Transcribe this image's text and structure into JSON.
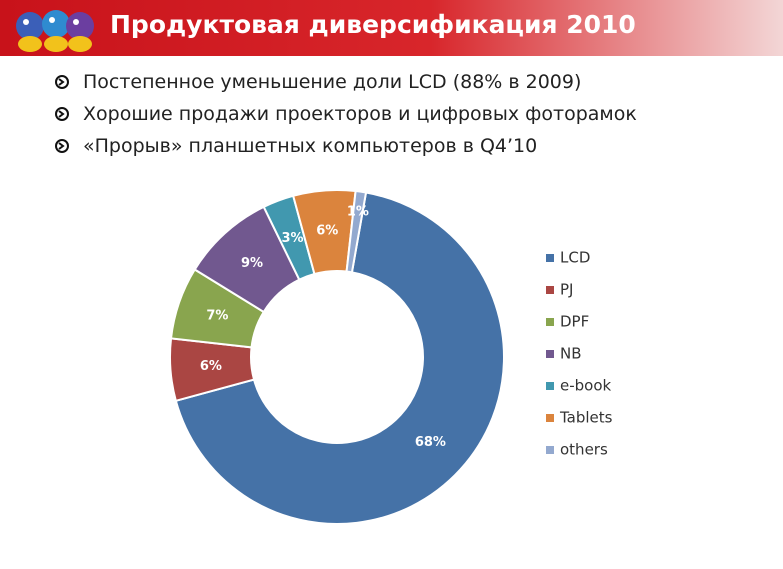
{
  "header": {
    "title": "Продуктовая диверсификация 2010"
  },
  "bullets": [
    "Постепенное уменьшение доли LCD (88% в 2009)",
    "Хорошие продажи проекторов и цифровых фоторамок",
    "«Прорыв» планшетных компьютеров в Q4’10"
  ],
  "chart_data": {
    "type": "donut",
    "categories": [
      "LCD",
      "PJ",
      "DPF",
      "NB",
      "e-book",
      "Tablets",
      "others"
    ],
    "values": [
      68,
      6,
      7,
      9,
      3,
      6,
      1
    ],
    "value_labels": [
      "68%",
      "6%",
      "7%",
      "9%",
      "3%",
      "6%",
      "1%"
    ],
    "colors": [
      "#4572a7",
      "#aa4643",
      "#89a54e",
      "#71588f",
      "#4198af",
      "#db843d",
      "#93a9cf"
    ],
    "legend": "right"
  }
}
